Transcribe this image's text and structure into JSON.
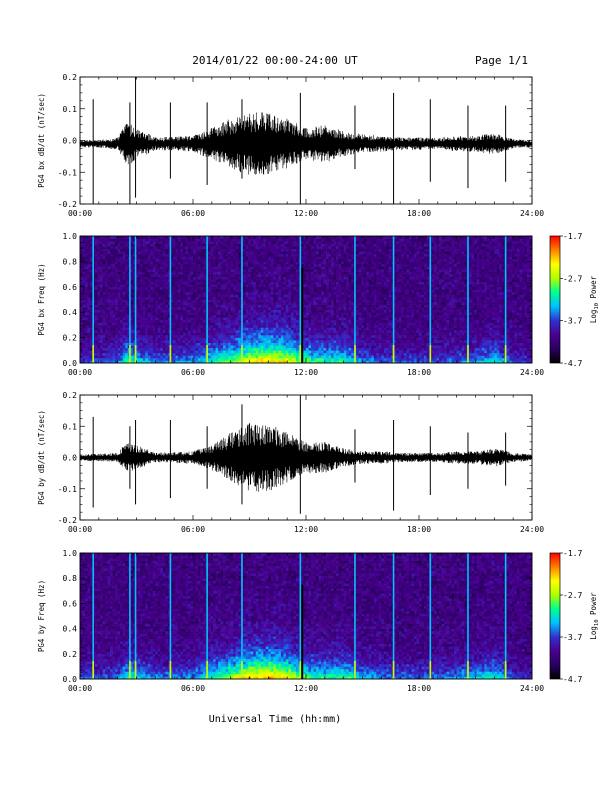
{
  "header": {
    "title": "2014/01/22  00:00-24:00 UT",
    "page": "Page 1/1"
  },
  "colors": {
    "colormap": [
      "#000000",
      "#2a0060",
      "#4a0090",
      "#3030d0",
      "#00c0ff",
      "#00ff90",
      "#b0ff00",
      "#ffff00",
      "#ff8000",
      "#ff0000"
    ],
    "trace": "#000000"
  },
  "chart_data": [
    {
      "type": "line",
      "ylabel": "PG4 bx dB/dt (nT/sec)",
      "xlim": [
        0,
        24
      ],
      "ylim": [
        -0.2,
        0.2
      ],
      "x_ticks": [
        "00:00",
        "06:00",
        "12:00",
        "18:00",
        "24:00"
      ],
      "y_ticks": [
        "-0.2",
        "-0.1",
        "0.0",
        "0.1",
        "0.2"
      ],
      "baseline": -0.01,
      "noise_envelope": {
        "hours": [
          0,
          1,
          2,
          2.5,
          3,
          4,
          6,
          7,
          8,
          9,
          10,
          11,
          12,
          13,
          14,
          15,
          16,
          17,
          18,
          19,
          20,
          21,
          22,
          23,
          24
        ],
        "amplitude": [
          0.012,
          0.012,
          0.02,
          0.07,
          0.05,
          0.02,
          0.025,
          0.05,
          0.08,
          0.1,
          0.1,
          0.08,
          0.05,
          0.06,
          0.04,
          0.03,
          0.025,
          0.02,
          0.02,
          0.018,
          0.025,
          0.025,
          0.035,
          0.015,
          0.012
        ]
      },
      "spikes": [
        {
          "hour": 0.7,
          "max": 0.13,
          "min": -0.2
        },
        {
          "hour": 2.65,
          "max": 0.12,
          "min": -0.2
        },
        {
          "hour": 2.95,
          "max": 0.2,
          "min": -0.18
        },
        {
          "hour": 4.8,
          "max": 0.12,
          "min": -0.12
        },
        {
          "hour": 6.75,
          "max": 0.12,
          "min": -0.14
        },
        {
          "hour": 8.6,
          "max": 0.13,
          "min": -0.12
        },
        {
          "hour": 11.7,
          "max": 0.15,
          "min": -0.2
        },
        {
          "hour": 14.6,
          "max": 0.11,
          "min": -0.09
        },
        {
          "hour": 16.65,
          "max": 0.15,
          "min": -0.2
        },
        {
          "hour": 18.6,
          "max": 0.13,
          "min": -0.13
        },
        {
          "hour": 20.6,
          "max": 0.11,
          "min": -0.15
        },
        {
          "hour": 22.6,
          "max": 0.11,
          "min": -0.13
        }
      ]
    },
    {
      "type": "heatmap",
      "ylabel": "PG4 bx Freq (Hz)",
      "xlim": [
        0,
        24
      ],
      "ylim": [
        0,
        1.0
      ],
      "x_ticks": [
        "00:00",
        "06:00",
        "12:00",
        "18:00",
        "24:00"
      ],
      "y_ticks": [
        "0.0",
        "0.2",
        "0.4",
        "0.6",
        "0.8",
        "1.0"
      ],
      "colorbar": {
        "label": "Log10 Power",
        "label_main": "Log",
        "label_sub": "10",
        "label_tail": " Power",
        "range": [
          -4.7,
          -1.7
        ],
        "ticks": [
          "-4.7",
          "-3.7",
          "-2.7",
          "-1.7"
        ]
      },
      "activity": {
        "hours": [
          0,
          1,
          2,
          2.5,
          3,
          4,
          6,
          7,
          8,
          9,
          10,
          11,
          12,
          13,
          14,
          15,
          16,
          17,
          18,
          19,
          20,
          21,
          22,
          23,
          24
        ],
        "intensity": [
          0.2,
          0.2,
          0.25,
          0.5,
          0.4,
          0.25,
          0.3,
          0.45,
          0.55,
          0.7,
          0.75,
          0.7,
          0.5,
          0.45,
          0.45,
          0.3,
          0.25,
          0.2,
          0.2,
          0.2,
          0.25,
          0.3,
          0.4,
          0.2,
          0.15
        ]
      },
      "lines": [
        0.7,
        2.65,
        2.95,
        4.8,
        6.75,
        8.6,
        11.7,
        14.6,
        16.65,
        18.6,
        20.6,
        22.6
      ],
      "gap_hour": 11.8
    },
    {
      "type": "line",
      "ylabel": "PG4 by dB/dt (nT/sec)",
      "xlim": [
        0,
        24
      ],
      "ylim": [
        -0.2,
        0.2
      ],
      "x_ticks": [
        "00:00",
        "06:00",
        "12:00",
        "18:00",
        "24:00"
      ],
      "y_ticks": [
        "-0.2",
        "-0.1",
        "0.0",
        "0.1",
        "0.2"
      ],
      "baseline": 0.0,
      "noise_envelope": {
        "hours": [
          0,
          1,
          2,
          2.5,
          3,
          4,
          6,
          7,
          8,
          9,
          10,
          11,
          12,
          13,
          14,
          15,
          16,
          17,
          18,
          19,
          20,
          21,
          22,
          23,
          24
        ],
        "amplitude": [
          0.01,
          0.012,
          0.015,
          0.05,
          0.04,
          0.015,
          0.02,
          0.04,
          0.08,
          0.11,
          0.11,
          0.08,
          0.05,
          0.05,
          0.03,
          0.02,
          0.02,
          0.015,
          0.015,
          0.015,
          0.02,
          0.02,
          0.03,
          0.015,
          0.01
        ]
      },
      "spikes": [
        {
          "hour": 0.7,
          "max": 0.13,
          "min": -0.16
        },
        {
          "hour": 2.65,
          "max": 0.1,
          "min": -0.1
        },
        {
          "hour": 2.95,
          "max": 0.12,
          "min": -0.15
        },
        {
          "hour": 4.8,
          "max": 0.12,
          "min": -0.13
        },
        {
          "hour": 6.75,
          "max": 0.1,
          "min": -0.1
        },
        {
          "hour": 8.6,
          "max": 0.17,
          "min": -0.15
        },
        {
          "hour": 11.7,
          "max": 0.2,
          "min": -0.18
        },
        {
          "hour": 14.6,
          "max": 0.09,
          "min": -0.08
        },
        {
          "hour": 16.65,
          "max": 0.12,
          "min": -0.17
        },
        {
          "hour": 18.6,
          "max": 0.1,
          "min": -0.12
        },
        {
          "hour": 20.6,
          "max": 0.08,
          "min": -0.1
        },
        {
          "hour": 22.6,
          "max": 0.08,
          "min": -0.09
        }
      ]
    },
    {
      "type": "heatmap",
      "ylabel": "PG4 by Freq (Hz)",
      "xlim": [
        0,
        24
      ],
      "ylim": [
        0,
        1.0
      ],
      "x_ticks": [
        "00:00",
        "06:00",
        "12:00",
        "18:00",
        "24:00"
      ],
      "y_ticks": [
        "0.0",
        "0.2",
        "0.4",
        "0.6",
        "0.8",
        "1.0"
      ],
      "colorbar": {
        "label": "Log10 Power",
        "label_main": "Log",
        "label_sub": "10",
        "label_tail": " Power",
        "range": [
          -4.7,
          -1.7
        ],
        "ticks": [
          "-4.7",
          "-3.7",
          "-2.7",
          "-1.7"
        ]
      },
      "activity": {
        "hours": [
          0,
          1,
          2,
          2.5,
          3,
          4,
          6,
          7,
          8,
          9,
          10,
          11,
          12,
          13,
          14,
          15,
          16,
          17,
          18,
          19,
          20,
          21,
          22,
          23,
          24
        ],
        "intensity": [
          0.2,
          0.2,
          0.25,
          0.45,
          0.4,
          0.25,
          0.3,
          0.45,
          0.6,
          0.75,
          0.8,
          0.7,
          0.5,
          0.45,
          0.5,
          0.35,
          0.3,
          0.25,
          0.25,
          0.25,
          0.3,
          0.35,
          0.45,
          0.2,
          0.15
        ]
      },
      "lines": [
        0.7,
        2.65,
        2.95,
        4.8,
        6.75,
        8.6,
        11.7,
        14.6,
        16.65,
        18.6,
        20.6,
        22.6
      ],
      "gap_hour": 11.8
    }
  ],
  "xlabel": "Universal Time (hh:mm)"
}
